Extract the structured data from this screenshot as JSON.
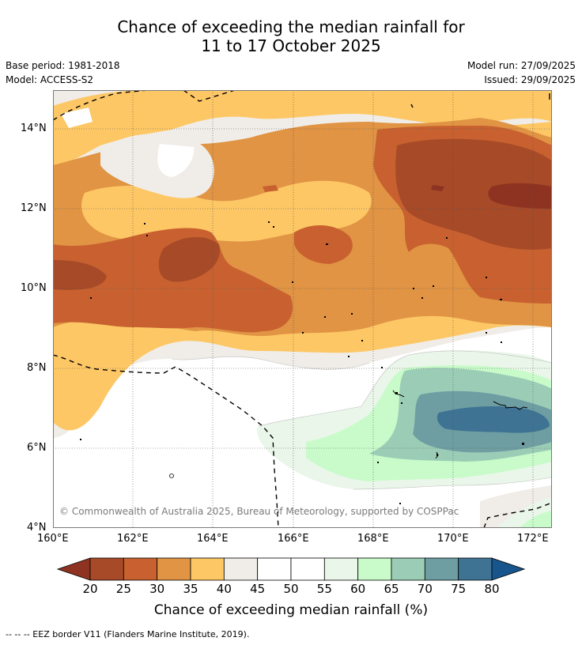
{
  "title": {
    "line1": "Chance of exceeding the median rainfall for",
    "line2": "11 to 17 October 2025"
  },
  "meta": {
    "base_period": "Base period: 1981-2018",
    "model": "Model: ACCESS-S2",
    "model_run": "Model run: 27/09/2025",
    "issued": "Issued: 29/09/2025"
  },
  "map": {
    "lat_labels": [
      "14°N",
      "12°N",
      "10°N",
      "8°N",
      "6°N",
      "4°N"
    ],
    "lon_labels": [
      "160°E",
      "162°E",
      "164°E",
      "166°E",
      "168°E",
      "170°E",
      "172°E"
    ],
    "copyright": "© Commonwealth of Australia 2025, Bureau of Meteorology, supported by COSPPac"
  },
  "colorbar": {
    "title": "Chance of exceeding median rainfall (%)",
    "labels": [
      "20",
      "25",
      "30",
      "35",
      "40",
      "45",
      "50",
      "55",
      "60",
      "65",
      "70",
      "75",
      "80"
    ],
    "colors": [
      "#a64a28",
      "#c8612f",
      "#e09444",
      "#fdc765",
      "#f0ede8",
      "#ffffff",
      "#ffffff",
      "#e9f6e9",
      "#c8fbc9",
      "#9bcdb6",
      "#6e9ea2",
      "#3f7393"
    ],
    "low_color": "#8e3322",
    "high_color": "#17558c"
  },
  "footer": "--  --  -- EEZ border V11 (Flanders Marine Institute, 2019)."
}
